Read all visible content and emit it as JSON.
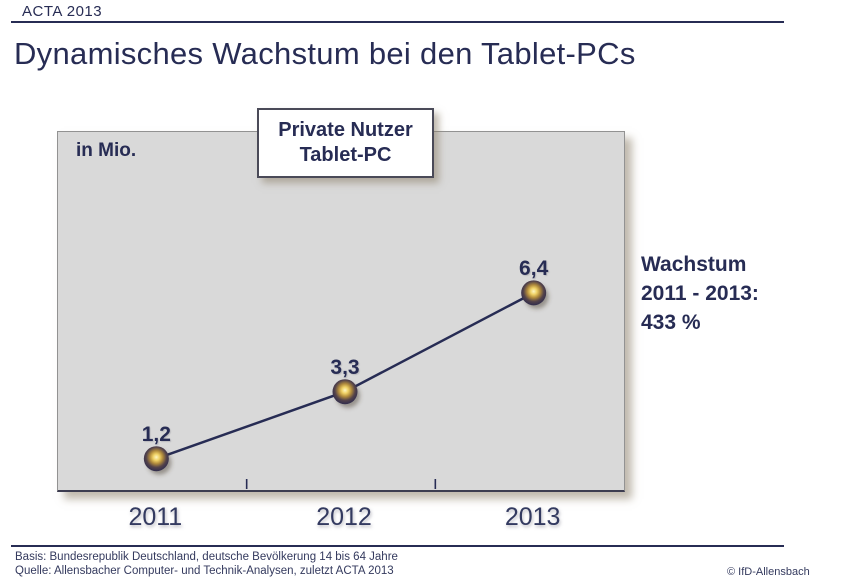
{
  "header": {
    "tag": "ACTA 2013"
  },
  "title": "Dynamisches Wachstum bei den Tablet-PCs",
  "chart": {
    "unit_label": "in Mio.",
    "box_title_line1": "Private Nutzer",
    "box_title_line2": "Tablet-PC",
    "annotation_lines": [
      "Wachstum",
      "2011 - 2013:",
      "433 %"
    ]
  },
  "chart_data": {
    "type": "line",
    "title": "Private Nutzer Tablet-PC",
    "unit": "in Mio.",
    "categories": [
      "2011",
      "2012",
      "2013"
    ],
    "values": [
      1.2,
      3.3,
      6.4
    ],
    "value_labels": [
      "1,2",
      "3,3",
      "6,4"
    ],
    "annotation": "Wachstum 2011 - 2013: 433 %",
    "y_axis_visible": false,
    "grid": false,
    "legend": false,
    "marker": "sphere",
    "colors": {
      "line": "#272c54",
      "marker_center": "#fdf3b8",
      "marker_edge": "#2e2b50",
      "plot_fill": "#d9d9d9",
      "text_navy": "#272c54"
    }
  },
  "footer": {
    "basis": "Basis: Bundesrepublik Deutschland, deutsche Bevölkerung 14 bis 64 Jahre",
    "quelle": "Quelle: Allensbacher Computer- und Technik-Analysen, zuletzt ACTA 2013",
    "copyright": "© IfD-Allensbach"
  }
}
